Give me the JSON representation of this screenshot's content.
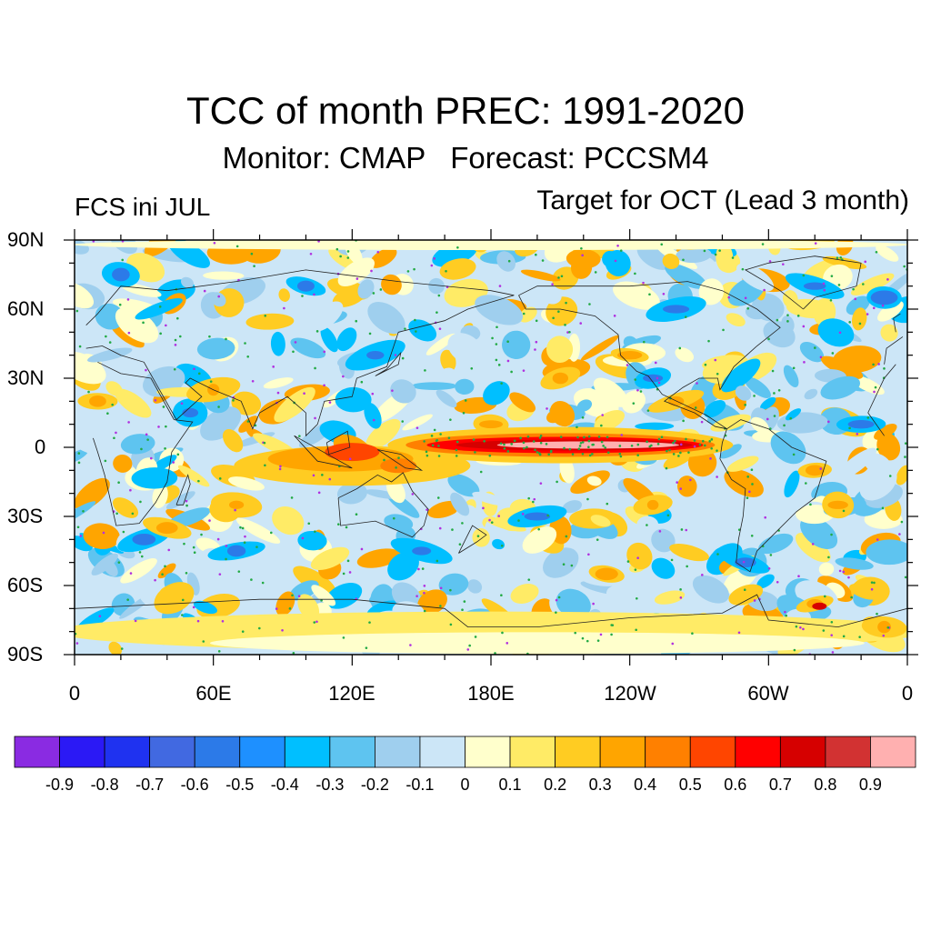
{
  "title": "TCC of month PREC: 1991-2020",
  "subtitle": "Monitor: CMAP   Forecast: PCCSM4",
  "left_label": "FCS ini JUL",
  "right_label": "Target for OCT (Lead 3 month)",
  "y_axis_labels": [
    "90N",
    "60N",
    "30N",
    "0",
    "30S",
    "60S",
    "90S"
  ],
  "x_axis_labels": [
    "0",
    "60E",
    "120E",
    "180E",
    "120W",
    "60W",
    "0"
  ],
  "colorbar": {
    "colors": [
      "#8a2be2",
      "#2b19f5",
      "#1f32f0",
      "#4169e1",
      "#2c7ae8",
      "#1e90ff",
      "#00bfff",
      "#5ec4f0",
      "#9fcfee",
      "#cce6f7",
      "#ffffcc",
      "#ffeb66",
      "#ffcc22",
      "#ffa500",
      "#ff8000",
      "#ff4500",
      "#ff0000",
      "#d60000",
      "#d23232",
      "#ffb0b0"
    ],
    "labels": [
      "-0.9",
      "-0.8",
      "-0.7",
      "-0.6",
      "-0.5",
      "-0.4",
      "-0.3",
      "-0.2",
      "-0.1",
      "0",
      "0.1",
      "0.2",
      "0.3",
      "0.4",
      "0.5",
      "0.6",
      "0.7",
      "0.8",
      "0.9"
    ]
  },
  "map": {
    "lon_range": [
      0,
      360
    ],
    "lat_range": [
      -90,
      90
    ],
    "field": "temporal correlation coefficient",
    "coastlines": true,
    "significance_markers": "dots (green over positive, purple over negative)",
    "notable_features": [
      "equatorial central-eastern Pacific band of high correlation (0.7-0.9)",
      "maritime continent region of positive correlation (0.5-0.7)"
    ]
  }
}
